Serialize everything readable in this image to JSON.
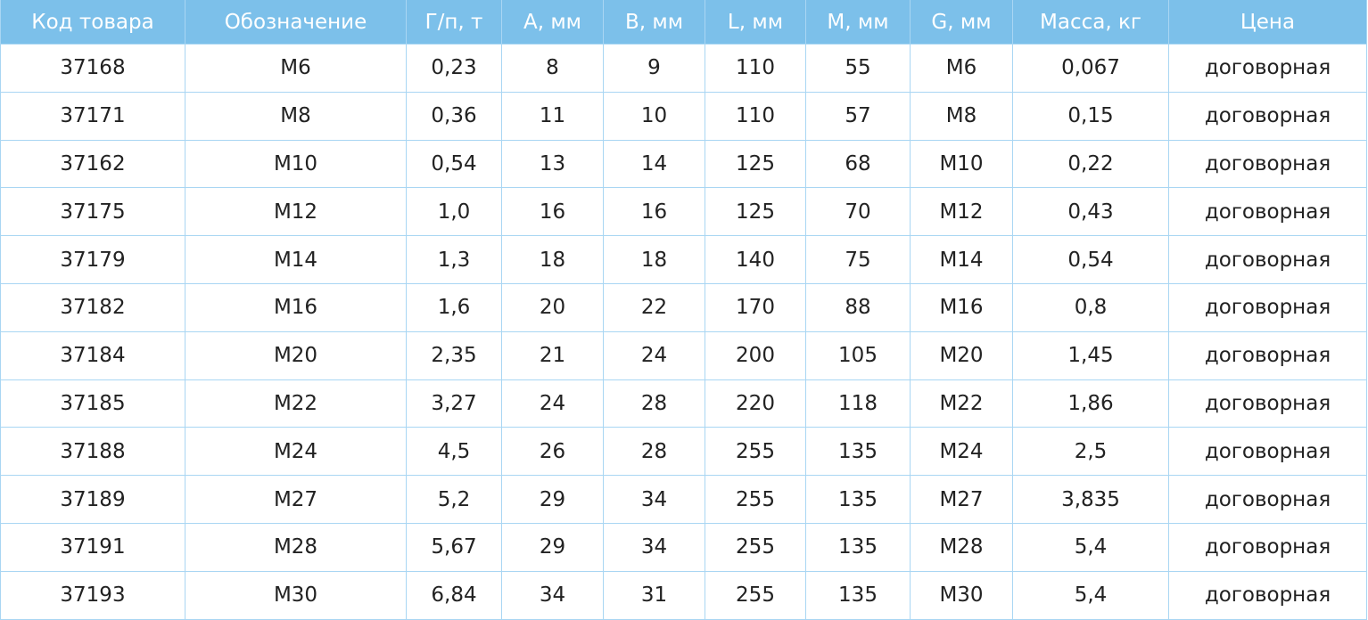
{
  "table": {
    "header": [
      "Код товара",
      "Обозначение",
      "Г/п, т",
      "А, мм",
      "В, мм",
      "L, мм",
      "М, мм",
      "G, мм",
      "Масса, кг",
      "Цена"
    ],
    "rows": [
      [
        "37168",
        "M6",
        "0,23",
        "8",
        "9",
        "110",
        "55",
        "M6",
        "0,067",
        "договорная"
      ],
      [
        "37171",
        "M8",
        "0,36",
        "11",
        "10",
        "110",
        "57",
        "M8",
        "0,15",
        "договорная"
      ],
      [
        "37162",
        "M10",
        "0,54",
        "13",
        "14",
        "125",
        "68",
        "M10",
        "0,22",
        "договорная"
      ],
      [
        "37175",
        "M12",
        "1,0",
        "16",
        "16",
        "125",
        "70",
        "M12",
        "0,43",
        "договорная"
      ],
      [
        "37179",
        "M14",
        "1,3",
        "18",
        "18",
        "140",
        "75",
        "M14",
        "0,54",
        "договорная"
      ],
      [
        "37182",
        "M16",
        "1,6",
        "20",
        "22",
        "170",
        "88",
        "M16",
        "0,8",
        "договорная"
      ],
      [
        "37184",
        "M20",
        "2,35",
        "21",
        "24",
        "200",
        "105",
        "M20",
        "1,45",
        "договорная"
      ],
      [
        "37185",
        "M22",
        "3,27",
        "24",
        "28",
        "220",
        "118",
        "M22",
        "1,86",
        "договорная"
      ],
      [
        "37188",
        "M24",
        "4,5",
        "26",
        "28",
        "255",
        "135",
        "M24",
        "2,5",
        "договорная"
      ],
      [
        "37189",
        "M27",
        "5,2",
        "29",
        "34",
        "255",
        "135",
        "M27",
        "3,835",
        "договорная"
      ],
      [
        "37191",
        "M28",
        "5,67",
        "29",
        "34",
        "255",
        "135",
        "M28",
        "5,4",
        "договорная"
      ],
      [
        "37193",
        "M30",
        "6,84",
        "34",
        "31",
        "255",
        "135",
        "M30",
        "5,4",
        "договорная"
      ]
    ]
  }
}
